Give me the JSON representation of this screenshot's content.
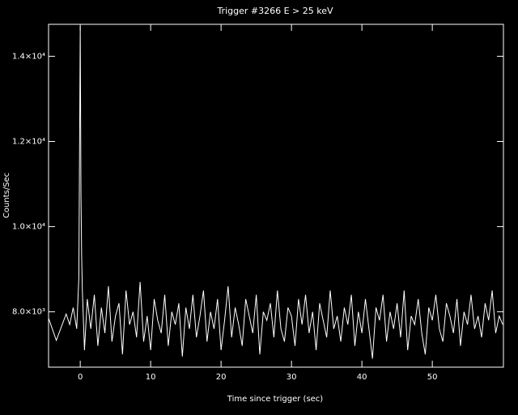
{
  "chart_data": {
    "type": "line",
    "title": "Trigger #3266 E > 25 keV",
    "xlabel": "Time since trigger (sec)",
    "ylabel": "Counts/Sec",
    "color": "#ffffff",
    "xlim": [
      -4.5,
      60.1
    ],
    "ylim": [
      6700,
      14750
    ],
    "xticks": [
      0,
      10,
      20,
      30,
      40,
      50
    ],
    "yticks": [
      {
        "value": 8000,
        "label": "8.0×10³"
      },
      {
        "value": 10000,
        "label": "1.0×10⁴"
      },
      {
        "value": 12000,
        "label": "1.2×10⁴"
      },
      {
        "value": 14000,
        "label": "1.4×10⁴"
      }
    ],
    "x": [
      -4.5,
      -3.4,
      -2.0,
      -1.5,
      -1.0,
      -0.5,
      -0.2,
      0.0,
      0.1,
      0.2,
      0.3,
      0.6,
      1.0,
      1.5,
      2.0,
      2.5,
      3.0,
      3.5,
      4.0,
      4.5,
      5.0,
      5.5,
      6.0,
      6.5,
      7.0,
      7.5,
      8.0,
      8.5,
      9.0,
      9.5,
      10.0,
      10.5,
      11.0,
      11.5,
      12.0,
      12.5,
      13.0,
      13.5,
      14.0,
      14.5,
      15.0,
      15.5,
      16.0,
      16.5,
      17.0,
      17.5,
      18.0,
      18.5,
      19.0,
      19.5,
      20.0,
      20.5,
      21.0,
      21.5,
      22.0,
      22.5,
      23.0,
      23.5,
      24.0,
      24.5,
      25.0,
      25.5,
      26.0,
      26.5,
      27.0,
      27.5,
      28.0,
      28.5,
      29.0,
      29.5,
      30.0,
      30.5,
      31.0,
      31.5,
      32.0,
      32.5,
      33.0,
      33.5,
      34.0,
      34.5,
      35.0,
      35.5,
      36.0,
      36.5,
      37.0,
      37.5,
      38.0,
      38.5,
      39.0,
      39.5,
      40.0,
      40.5,
      41.0,
      41.5,
      42.0,
      42.5,
      43.0,
      43.5,
      44.0,
      44.5,
      45.0,
      45.5,
      46.0,
      46.5,
      47.0,
      47.5,
      48.0,
      48.5,
      49.0,
      49.5,
      50.0,
      50.5,
      51.0,
      51.5,
      52.0,
      52.5,
      53.0,
      53.5,
      54.0,
      54.5,
      55.0,
      55.5,
      56.0,
      56.5,
      57.0,
      57.5,
      58.0,
      58.5,
      59.0,
      59.5,
      60.0
    ],
    "values": [
      7850,
      7330,
      7950,
      7700,
      8100,
      7600,
      8800,
      14700,
      10800,
      9300,
      8500,
      7100,
      8300,
      7600,
      8400,
      7200,
      8100,
      7500,
      8600,
      7300,
      7900,
      8200,
      7000,
      8500,
      7700,
      8000,
      7400,
      8700,
      7300,
      7900,
      7100,
      8300,
      7800,
      7500,
      8400,
      7200,
      8000,
      7700,
      8200,
      6950,
      8100,
      7600,
      8400,
      7400,
      7900,
      8500,
      7300,
      8000,
      7600,
      8300,
      7100,
      7800,
      8600,
      7400,
      8100,
      7700,
      7200,
      8300,
      7900,
      7500,
      8400,
      7000,
      8000,
      7800,
      8200,
      7400,
      8500,
      7600,
      7300,
      8100,
      7900,
      7200,
      8300,
      7700,
      8400,
      7500,
      8000,
      7100,
      8200,
      7800,
      7400,
      8500,
      7600,
      7900,
      7300,
      8100,
      7700,
      8400,
      7200,
      8000,
      7500,
      8300,
      7600,
      6900,
      8100,
      7800,
      8400,
      7300,
      8000,
      7600,
      8200,
      7400,
      8500,
      7100,
      7900,
      7700,
      8300,
      7500,
      7000,
      8100,
      7800,
      8400,
      7600,
      7300,
      8200,
      7900,
      7500,
      8300,
      7200,
      8000,
      7700,
      8400,
      7600,
      7900,
      7400,
      8200,
      7800,
      8500,
      7500,
      7900,
      7700
    ]
  }
}
